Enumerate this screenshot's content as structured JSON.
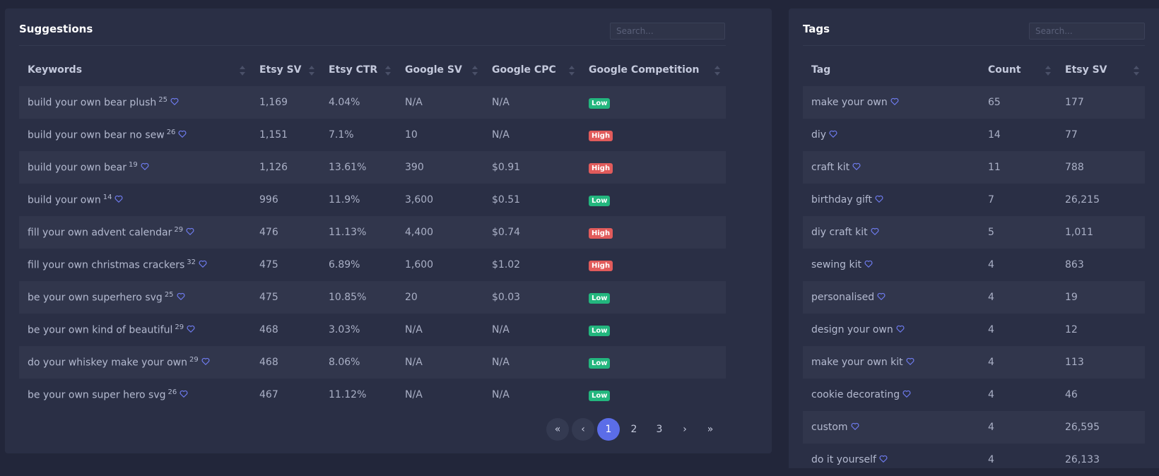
{
  "suggestions": {
    "title": "Suggestions",
    "search_placeholder": "Search...",
    "columns": [
      "Keywords",
      "Etsy SV",
      "Etsy CTR",
      "Google SV",
      "Google CPC",
      "Google Competition"
    ],
    "rows": [
      {
        "keyword": "build your own bear plush",
        "count": "25",
        "etsy_sv": "1,169",
        "etsy_ctr": "4.04%",
        "google_sv": "N/A",
        "google_cpc": "N/A",
        "competition": "Low"
      },
      {
        "keyword": "build your own bear no sew",
        "count": "26",
        "etsy_sv": "1,151",
        "etsy_ctr": "7.1%",
        "google_sv": "10",
        "google_cpc": "N/A",
        "competition": "High"
      },
      {
        "keyword": "build your own bear",
        "count": "19",
        "etsy_sv": "1,126",
        "etsy_ctr": "13.61%",
        "google_sv": "390",
        "google_cpc": "$0.91",
        "competition": "High"
      },
      {
        "keyword": "build your own",
        "count": "14",
        "etsy_sv": "996",
        "etsy_ctr": "11.9%",
        "google_sv": "3,600",
        "google_cpc": "$0.51",
        "competition": "Low"
      },
      {
        "keyword": "fill your own advent calendar",
        "count": "29",
        "etsy_sv": "476",
        "etsy_ctr": "11.13%",
        "google_sv": "4,400",
        "google_cpc": "$0.74",
        "competition": "High"
      },
      {
        "keyword": "fill your own christmas crackers",
        "count": "32",
        "etsy_sv": "475",
        "etsy_ctr": "6.89%",
        "google_sv": "1,600",
        "google_cpc": "$1.02",
        "competition": "High"
      },
      {
        "keyword": "be your own superhero svg",
        "count": "25",
        "etsy_sv": "475",
        "etsy_ctr": "10.85%",
        "google_sv": "20",
        "google_cpc": "$0.03",
        "competition": "Low"
      },
      {
        "keyword": "be your own kind of beautiful",
        "count": "29",
        "etsy_sv": "468",
        "etsy_ctr": "3.03%",
        "google_sv": "N/A",
        "google_cpc": "N/A",
        "competition": "Low"
      },
      {
        "keyword": "do your whiskey make your own",
        "count": "29",
        "etsy_sv": "468",
        "etsy_ctr": "8.06%",
        "google_sv": "N/A",
        "google_cpc": "N/A",
        "competition": "Low"
      },
      {
        "keyword": "be your own super hero svg",
        "count": "26",
        "etsy_sv": "467",
        "etsy_ctr": "11.12%",
        "google_sv": "N/A",
        "google_cpc": "N/A",
        "competition": "Low"
      }
    ],
    "pagination": {
      "first": "«",
      "prev": "‹",
      "pages": [
        "1",
        "2",
        "3"
      ],
      "current": "1",
      "next": "›",
      "last": "»"
    }
  },
  "tags": {
    "title": "Tags",
    "search_placeholder": "Search...",
    "columns": [
      "Tag",
      "Count",
      "Etsy SV"
    ],
    "rows": [
      {
        "tag": "make your own",
        "count": "65",
        "etsy_sv": "177"
      },
      {
        "tag": "diy",
        "count": "14",
        "etsy_sv": "77"
      },
      {
        "tag": "craft kit",
        "count": "11",
        "etsy_sv": "788"
      },
      {
        "tag": "birthday gift",
        "count": "7",
        "etsy_sv": "26,215"
      },
      {
        "tag": "diy craft kit",
        "count": "5",
        "etsy_sv": "1,011"
      },
      {
        "tag": "sewing kit",
        "count": "4",
        "etsy_sv": "863"
      },
      {
        "tag": "personalised",
        "count": "4",
        "etsy_sv": "19"
      },
      {
        "tag": "design your own",
        "count": "4",
        "etsy_sv": "12"
      },
      {
        "tag": "make your own kit",
        "count": "4",
        "etsy_sv": "113"
      },
      {
        "tag": "cookie decorating",
        "count": "4",
        "etsy_sv": "46"
      },
      {
        "tag": "custom",
        "count": "4",
        "etsy_sv": "26,595"
      },
      {
        "tag": "do it yourself",
        "count": "4",
        "etsy_sv": "26,133"
      }
    ]
  },
  "colors": {
    "background": "#22263a",
    "panel": "#2a2f45",
    "accent": "#5b6de8",
    "heart": "#6f7cf0",
    "low_badge": "#23b67e",
    "high_badge": "#e15b5b"
  },
  "icons": {
    "favorite": "heart-outline-icon",
    "sort": "sort-arrows-icon"
  }
}
